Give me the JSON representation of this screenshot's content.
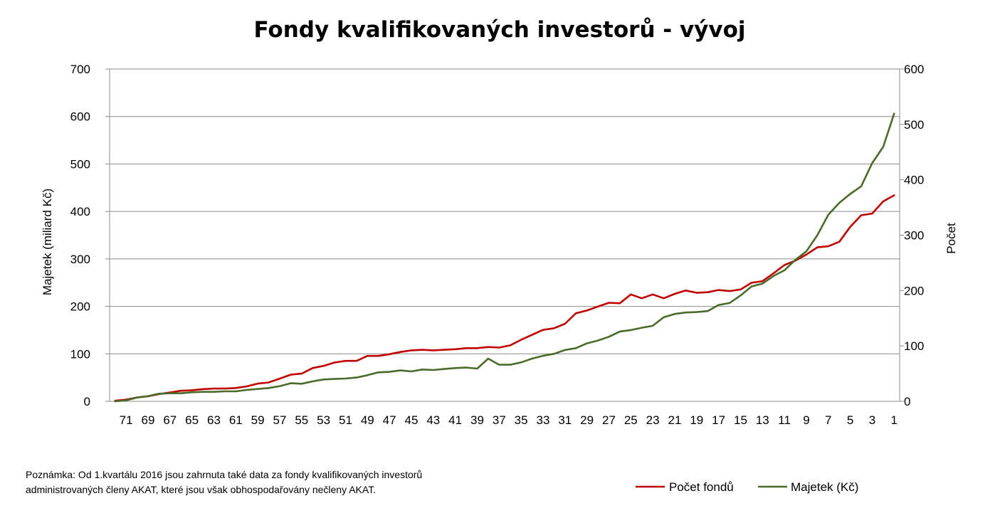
{
  "chart_data": {
    "type": "line",
    "title": "Fondy kvalifikovaných investorů - vývoj",
    "ylabel": "Majetek (miliard Kč)",
    "y2label": "Počet",
    "ylim": [
      0,
      700
    ],
    "y2lim": [
      0,
      600
    ],
    "yticks": [
      0,
      100,
      200,
      300,
      400,
      500,
      600,
      700
    ],
    "y2ticks": [
      0,
      100,
      200,
      300,
      400,
      500,
      600
    ],
    "x": [
      72,
      71,
      70,
      69,
      68,
      67,
      66,
      65,
      64,
      63,
      62,
      61,
      60,
      59,
      58,
      57,
      56,
      55,
      54,
      53,
      52,
      51,
      50,
      49,
      48,
      47,
      46,
      45,
      44,
      43,
      42,
      41,
      40,
      39,
      38,
      37,
      36,
      35,
      34,
      33,
      32,
      31,
      30,
      29,
      28,
      27,
      26,
      25,
      24,
      23,
      22,
      21,
      20,
      19,
      18,
      17,
      16,
      15,
      14,
      13,
      12,
      11,
      10,
      9,
      8,
      7,
      6,
      5,
      4,
      3,
      2,
      1
    ],
    "xticks": [
      71,
      69,
      67,
      65,
      63,
      61,
      59,
      57,
      55,
      53,
      51,
      49,
      47,
      45,
      43,
      41,
      39,
      37,
      35,
      33,
      31,
      29,
      27,
      25,
      23,
      21,
      19,
      17,
      15,
      13,
      11,
      9,
      7,
      5,
      3,
      1
    ],
    "grid": true,
    "legend_position": "bottom-right",
    "series": [
      {
        "name": "Počet fondů",
        "axis": "right",
        "color": "#c00000",
        "values": [
          1,
          3,
          7,
          9,
          13,
          16,
          19,
          20,
          22,
          23,
          23,
          24,
          27,
          32,
          34,
          41,
          48,
          50,
          60,
          64,
          70,
          73,
          73,
          82,
          82,
          85,
          89,
          92,
          93,
          92,
          93,
          94,
          96,
          96,
          98,
          97,
          101,
          111,
          120,
          129,
          132,
          140,
          159,
          164,
          171,
          178,
          177,
          193,
          186,
          193,
          186,
          194,
          200,
          196,
          197,
          201,
          199,
          202,
          214,
          217,
          231,
          246,
          254,
          265,
          278,
          280,
          288,
          315,
          336,
          339,
          361,
          372
        ]
      },
      {
        "name": "Majetek (Kč)",
        "axis": "left",
        "color": "#4a6b2a",
        "values": [
          0,
          2,
          8,
          11,
          16,
          17,
          17,
          19,
          20,
          20,
          21,
          21,
          24,
          26,
          28,
          32,
          38,
          37,
          42,
          46,
          47,
          48,
          50,
          55,
          61,
          62,
          65,
          63,
          67,
          66,
          68,
          70,
          71,
          69,
          90,
          77,
          77,
          82,
          90,
          96,
          100,
          108,
          112,
          122,
          128,
          136,
          147,
          150,
          155,
          159,
          177,
          184,
          187,
          188,
          190,
          203,
          207,
          223,
          242,
          248,
          264,
          276,
          298,
          316,
          350,
          393,
          418,
          437,
          453,
          502,
          536,
          606
        ]
      }
    ]
  },
  "note": {
    "line1": "Poznámka: Od 1.kvartálu 2016 jsou zahrnuta také data za fondy kvalifikovaných investorů",
    "line2": "administrovaných členy AKAT, které jsou však obhospodařovány nečleny AKAT."
  }
}
